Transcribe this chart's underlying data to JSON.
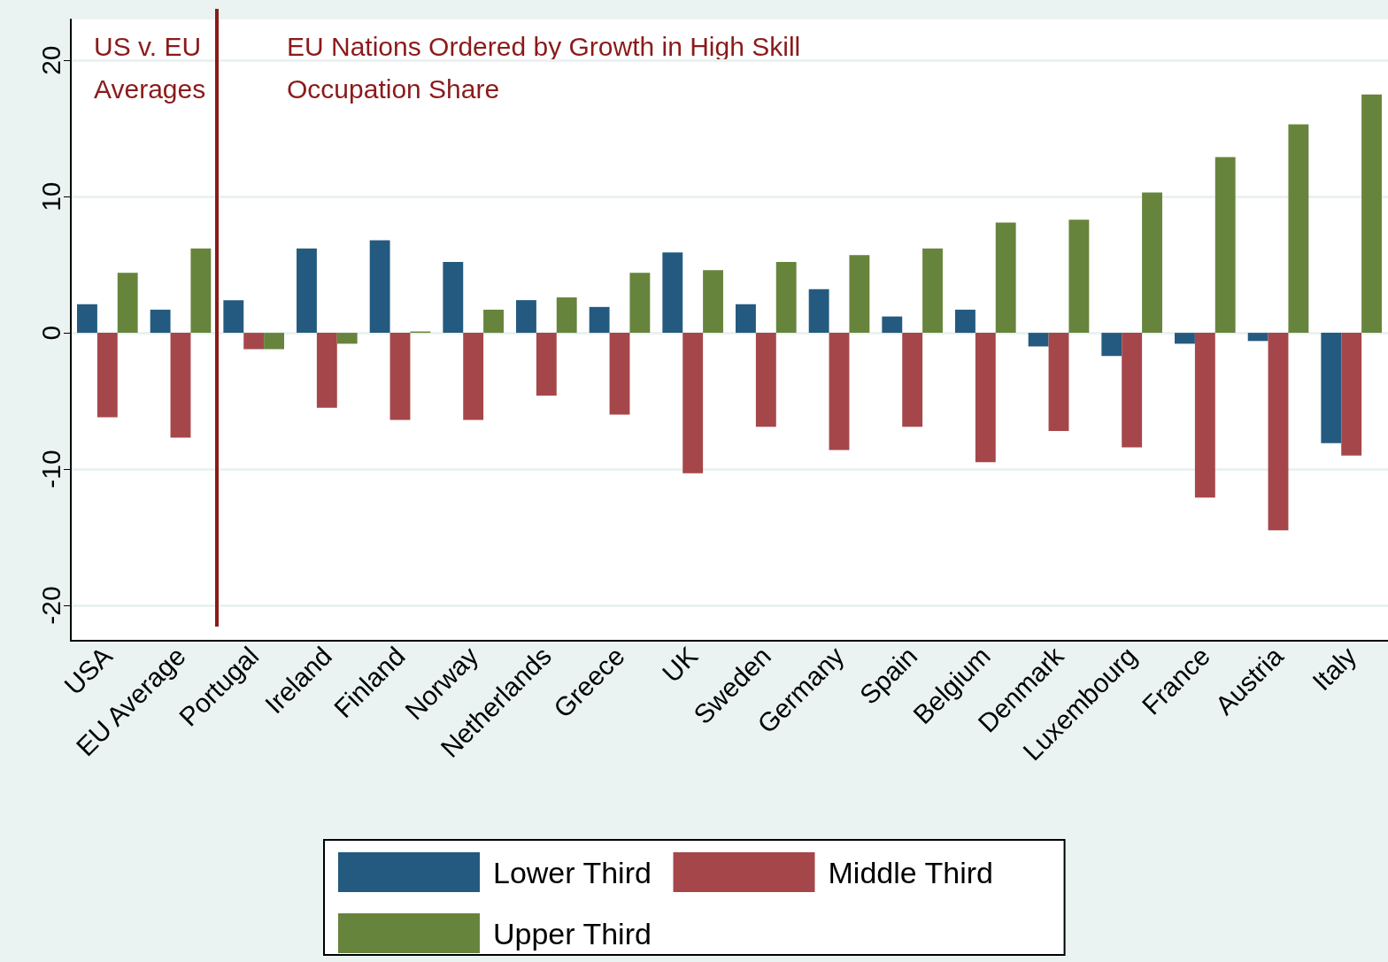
{
  "chart_data": {
    "type": "bar",
    "categories": [
      "USA",
      "EU Average",
      "Portugal",
      "Ireland",
      "Finland",
      "Norway",
      "Netherlands",
      "Greece",
      "UK",
      "Sweden",
      "Germany",
      "Spain",
      "Belgium",
      "Denmark",
      "Luxembourg",
      "France",
      "Austria",
      "Italy"
    ],
    "series": [
      {
        "name": "Lower Third",
        "color": "#245a80",
        "values": [
          2.1,
          1.7,
          2.4,
          6.2,
          6.8,
          5.2,
          2.4,
          1.9,
          5.9,
          2.1,
          3.2,
          1.2,
          1.7,
          -1.0,
          -1.7,
          -0.8,
          -0.6,
          -8.1
        ]
      },
      {
        "name": "Middle Third",
        "color": "#a5474a",
        "values": [
          -6.2,
          -7.7,
          -1.2,
          -5.5,
          -6.4,
          -6.4,
          -4.6,
          -6.0,
          -10.3,
          -6.9,
          -8.6,
          -6.9,
          -9.5,
          -7.2,
          -8.4,
          -12.1,
          -14.5,
          -9.0
        ]
      },
      {
        "name": "Upper Third",
        "color": "#67843c",
        "values": [
          4.4,
          6.2,
          -1.2,
          -0.8,
          0.1,
          1.7,
          2.6,
          4.4,
          4.6,
          5.2,
          5.7,
          6.2,
          8.1,
          8.3,
          10.3,
          12.9,
          15.3,
          17.5
        ]
      }
    ],
    "ylim": [
      -22.6,
      23
    ],
    "yticks": [
      -20,
      -10,
      0,
      10,
      20
    ],
    "grid": "y",
    "legend": "bottom",
    "annotations": [
      "US v. EU\nAverages",
      "EU Nations Ordered by Growth in High Skill\nOccupation Share"
    ]
  }
}
